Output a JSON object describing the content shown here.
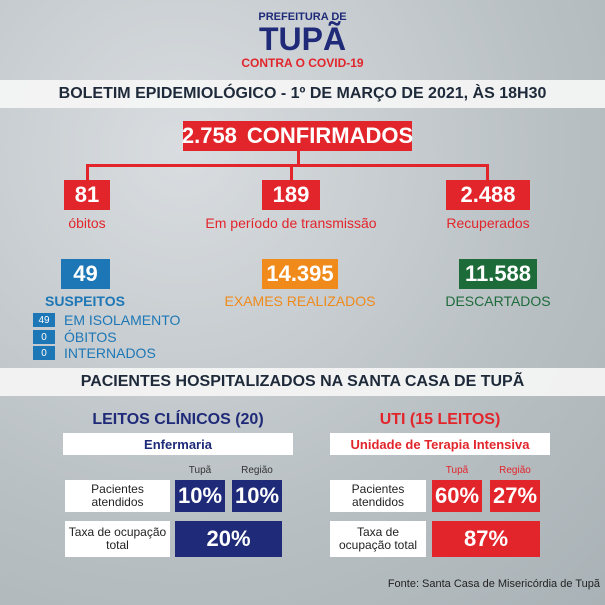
{
  "header": {
    "prefecture": "PREFEITURA DE",
    "city": "TUPÃ",
    "campaign": "CONTRA O COVID-19"
  },
  "bulletin": "BOLETIM EPIDEMIOLÓGICO - 1º DE MARÇO DE 2021, ÀS 18H30",
  "confirmed": {
    "value": "2.758",
    "label": "CONFIRMADOS"
  },
  "stats": [
    {
      "value": "81",
      "label": "óbitos"
    },
    {
      "value": "189",
      "label": "Em período de transmissão"
    },
    {
      "value": "2.488",
      "label": "Recuperados"
    }
  ],
  "tests": [
    {
      "value": "49",
      "label": "SUSPEITOS"
    },
    {
      "value": "14.395",
      "label": "EXAMES REALIZADOS"
    },
    {
      "value": "11.588",
      "label": "DESCARTADOS"
    }
  ],
  "suspects": [
    {
      "value": "49",
      "label": "EM ISOLAMENTO"
    },
    {
      "value": "0",
      "label": "ÓBITOS"
    },
    {
      "value": "0",
      "label": "INTERNADOS"
    }
  ],
  "hospital": {
    "title": "PACIENTES HOSPITALIZADOS NA SANTA CASA DE TUPÃ",
    "wards": [
      {
        "title": "LEITOS CLÍNICOS (20)",
        "unit": "Enfermaria",
        "columns": [
          "Tupã",
          "Região"
        ],
        "rows": [
          {
            "label": "Pacientes atendidos",
            "values": [
              "10%",
              "10%"
            ]
          },
          {
            "label": "Taxa de ocupação total",
            "values": [
              "20%"
            ]
          }
        ]
      },
      {
        "title": "UTI (15 LEITOS)",
        "unit": "Unidade de Terapia Intensiva",
        "columns": [
          "Tupã",
          "Região"
        ],
        "rows": [
          {
            "label": "Pacientes atendidos",
            "values": [
              "60%",
              "27%"
            ]
          },
          {
            "label": "Taxa de ocupação total",
            "values": [
              "87%"
            ]
          }
        ]
      }
    ]
  },
  "source": "Fonte: Santa Casa de Misericórdia de Tupã"
}
